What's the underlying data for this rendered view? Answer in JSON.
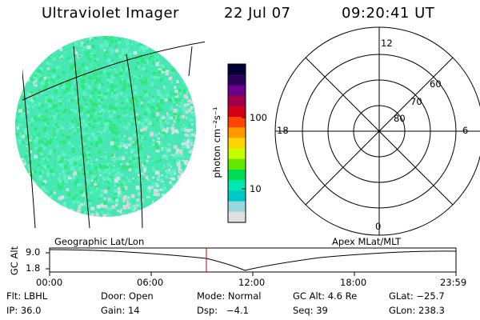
{
  "header": {
    "instrument": "Ultraviolet Imager",
    "date": "22 Jul 07",
    "time": "09:20:41 UT"
  },
  "colorbar": {
    "unit_label": "photon cm⁻²s⁻¹",
    "ticks": [
      "100",
      "10"
    ],
    "colors": [
      "#000033",
      "#2a005a",
      "#6a008a",
      "#a0004a",
      "#d00018",
      "#ff4400",
      "#ff9900",
      "#ffd400",
      "#c8ff00",
      "#60e800",
      "#00dd55",
      "#00e8b0",
      "#00c8c8",
      "#9ad8e0",
      "#e0e0e0"
    ]
  },
  "image": {
    "fill_colors": [
      "#44eeb0",
      "#2ee87a",
      "#62f0c8",
      "#c8e8e8",
      "#d8d8d8"
    ]
  },
  "polar": {
    "mlt_labels": {
      "top": "12",
      "left": "18",
      "right": "6",
      "bottom": "0"
    },
    "lat_labels": [
      "60",
      "70",
      "80"
    ]
  },
  "track": {
    "left_label": "Geographic Lat/Lon",
    "right_label": "Apex MLat/MLT",
    "axis_label": "GC Alt",
    "y_ticks": [
      "9.0",
      "1.8"
    ],
    "x_ticks": [
      "00:00",
      "06:00",
      "12:00",
      "18:00",
      "23:59"
    ],
    "marker_color": "#cc0000",
    "marker_time": "09:20"
  },
  "info": {
    "row1": {
      "filter": "Flt: LBHL",
      "door": "Door: Open",
      "mode": "Mode: Normal",
      "gc_alt": "GC Alt: 4.6 Re",
      "glat": "GLat: −25.7"
    },
    "row2": {
      "ip": "IP: 36.0",
      "gain": "Gain: 14",
      "dsp": "Dsp:   −4.1",
      "seq": "Seq: 39",
      "glon": "GLon: 238.3"
    }
  }
}
